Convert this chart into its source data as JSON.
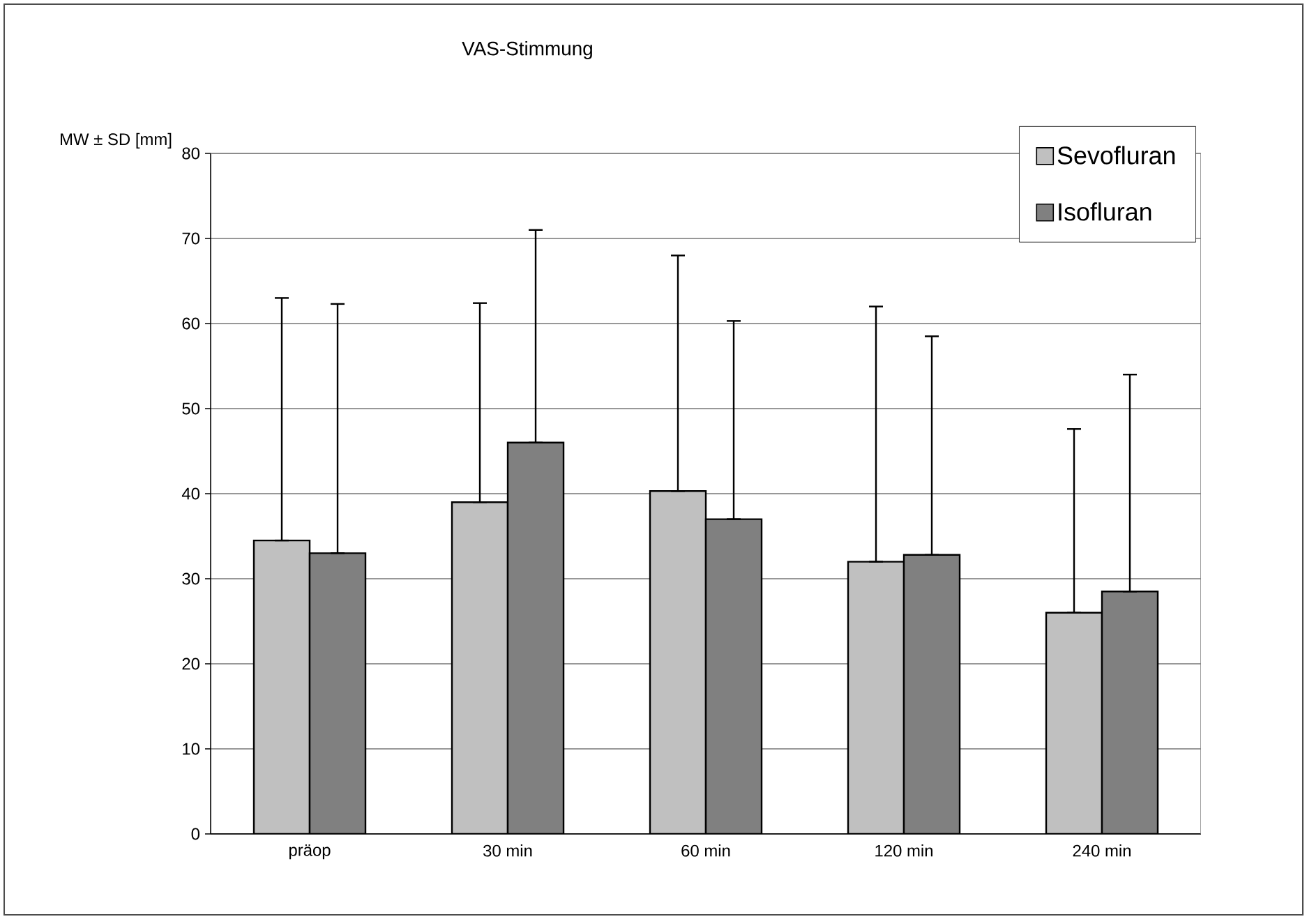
{
  "chart_data": {
    "type": "bar",
    "title": "VAS-Stimmung",
    "ylabel": "MW ± SD [mm]",
    "categories": [
      "präop",
      "30 min",
      "60 min",
      "120 min",
      "240 min"
    ],
    "series": [
      {
        "name": "Sevofluran",
        "color": "#c0c0c0",
        "values": [
          34.5,
          39,
          40.3,
          32,
          26
        ],
        "errors": [
          [
            34.5,
            63
          ],
          [
            39,
            62.4
          ],
          [
            40.3,
            68
          ],
          [
            32,
            62
          ],
          [
            26,
            47.6
          ]
        ]
      },
      {
        "name": "Isofluran",
        "color": "#808080",
        "values": [
          33,
          46,
          37,
          32.8,
          28.5
        ],
        "errors": [
          [
            33,
            62.3
          ],
          [
            46,
            71
          ],
          [
            37,
            60.3
          ],
          [
            32.8,
            58.5
          ],
          [
            28.5,
            54
          ]
        ]
      }
    ],
    "ylim": [
      0,
      80
    ],
    "yticks": [
      0,
      10,
      20,
      30,
      40,
      50,
      60,
      70,
      80
    ],
    "grid": "y",
    "legend": "top right"
  }
}
